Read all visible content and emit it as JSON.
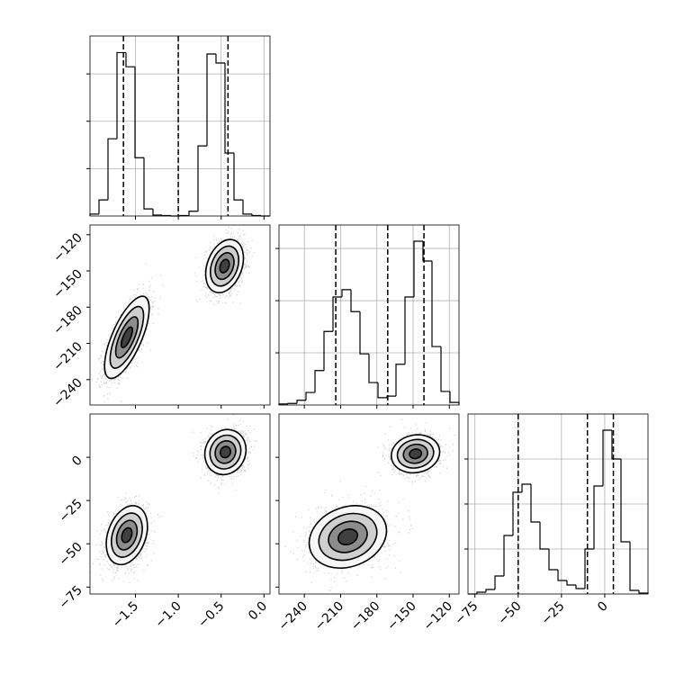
{
  "chart_data": {
    "type": "corner",
    "grid": true,
    "params": [
      {
        "xlim": [
          -2.03,
          0.07
        ],
        "ticks": [
          {
            "value": -1.5,
            "label": "−1.5"
          },
          {
            "value": -1.0,
            "label": "−1.0"
          },
          {
            "value": -0.5,
            "label": "−0.5"
          },
          {
            "value": 0.0,
            "label": "0.0"
          }
        ],
        "bins": [
          -2.03,
          -1.925,
          -1.82,
          -1.715,
          -1.61,
          -1.505,
          -1.4,
          -1.295,
          -1.19,
          -1.085,
          -0.98,
          -0.875,
          -0.77,
          -0.665,
          -0.56,
          -0.455,
          -0.35,
          -0.245,
          -0.14,
          -0.035,
          0.07
        ],
        "counts": [
          0.04,
          0.34,
          1.63,
          3.45,
          3.15,
          1.23,
          0.15,
          0.02,
          0.01,
          0,
          0.01,
          0.1,
          1.48,
          3.42,
          3.23,
          1.33,
          0.34,
          0.04,
          0.01,
          0
        ],
        "hist_ylim": [
          0,
          3.8
        ],
        "hist_yticks": [
          1,
          2,
          3
        ],
        "quantiles": [
          -1.64,
          -1.0,
          -0.42
        ]
      },
      {
        "xlim": [
          -261,
          -112
        ],
        "ticks": [
          {
            "value": -240,
            "label": "−240"
          },
          {
            "value": -210,
            "label": "−210"
          },
          {
            "value": -180,
            "label": "−180"
          },
          {
            "value": -150,
            "label": "−150"
          },
          {
            "value": -120,
            "label": "−120"
          }
        ],
        "bins": [
          -261,
          -253.55,
          -246.1,
          -238.65,
          -231.2,
          -223.75,
          -216.3,
          -208.85,
          -201.4,
          -193.95,
          -186.5,
          -179.05,
          -171.6,
          -164.15,
          -156.7,
          -149.25,
          -141.8,
          -134.35,
          -126.9,
          -119.45,
          -112
        ],
        "counts": [
          0.02,
          0.03,
          0.09,
          0.24,
          0.66,
          1.41,
          2.07,
          2.21,
          1.79,
          0.98,
          0.43,
          0.14,
          0.17,
          0.78,
          2.07,
          3.14,
          2.76,
          1.12,
          0.26,
          0.05
        ],
        "hist_ylim": [
          0,
          3.45
        ],
        "hist_yticks": [
          1,
          2,
          3
        ],
        "quantiles": [
          -214,
          -171,
          -141
        ]
      },
      {
        "xlim": [
          -79,
          25
        ],
        "ticks": [
          {
            "value": -75,
            "label": "−75"
          },
          {
            "value": -50,
            "label": "−50"
          },
          {
            "value": -25,
            "label": "−25"
          },
          0
        ],
        "bins": [
          -79,
          -73.8,
          -68.6,
          -63.4,
          -58.2,
          -53,
          -47.8,
          -42.6,
          -37.4,
          -32.2,
          -27,
          -21.8,
          -16.6,
          -11.4,
          -6.2,
          -1,
          4.2,
          9.4,
          14.6,
          19.8,
          25
        ],
        "counts": [
          0,
          0.04,
          0.1,
          0.4,
          1.3,
          2.26,
          2.44,
          1.6,
          1.0,
          0.54,
          0.3,
          0.2,
          0.12,
          1.0,
          2.4,
          3.64,
          3.0,
          1.16,
          0.08,
          0.02
        ],
        "hist_ylim": [
          0,
          4
        ],
        "hist_yticks": [
          1,
          2,
          3
        ],
        "quantiles": [
          -50,
          -10,
          5
        ]
      }
    ],
    "pairs": [
      {
        "clusters": [
          {
            "center": [
              -1.6,
              -205
            ],
            "sigma": [
              0.13,
              17
            ],
            "rho": 0.7
          },
          {
            "center": [
              -0.46,
              -146
            ],
            "sigma": [
              0.11,
              11
            ],
            "rho": 0.3
          }
        ]
      },
      {
        "clusters": [
          {
            "center": [
              -1.6,
              -45
            ],
            "sigma": [
              0.12,
              8.5
            ],
            "rho": 0.3
          },
          {
            "center": [
              -0.45,
              3
            ],
            "sigma": [
              0.12,
              6.5
            ],
            "rho": 0.1
          }
        ]
      },
      {
        "clusters": [
          {
            "center": [
              -204,
              -46
            ],
            "sigma": [
              16,
              9
            ],
            "rho": 0.2
          },
          {
            "center": [
              -148,
              2
            ],
            "sigma": [
              10,
              5.5
            ],
            "rho": 0.1
          }
        ]
      }
    ]
  }
}
